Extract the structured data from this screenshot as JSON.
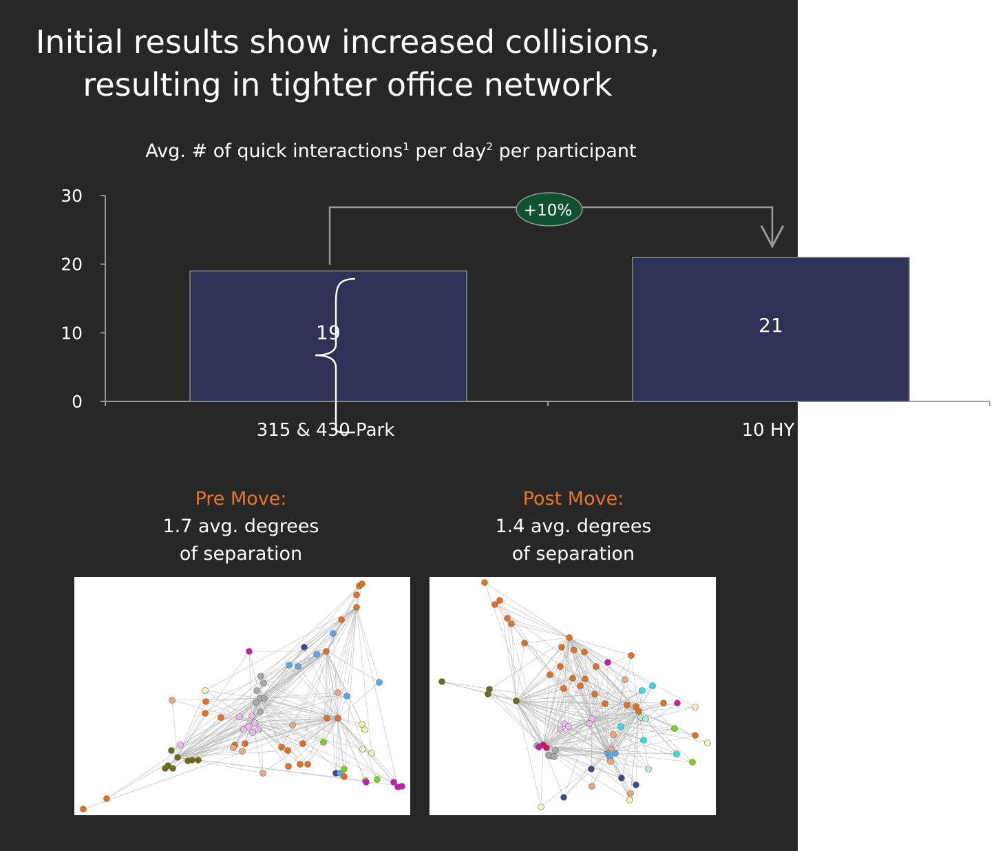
{
  "title": "Initial results show increased collisions,\nresulting in tighter office network",
  "chart_data": {
    "type": "bar",
    "title": "Avg. # of quick interactions",
    "title_sup1": "1",
    "title_mid": " per day",
    "title_sup2": "2",
    "title_end": " per participant",
    "categories": [
      "315 & 430 Park",
      "10 HY"
    ],
    "values": [
      19,
      21
    ],
    "value_labels": [
      "19",
      "21"
    ],
    "ylim": [
      0,
      30
    ],
    "yticks": [
      0,
      10,
      20,
      30
    ],
    "bar_color": "#2d3256",
    "annotation": {
      "label": "+10%",
      "color": "#0e5330"
    }
  },
  "captions": [
    {
      "heading": "Pre Move:",
      "line1": "1.7 avg. degrees",
      "line2": "of separation"
    },
    {
      "heading": "Post Move:",
      "line1": "1.4 avg. degrees",
      "line2": "of separation"
    }
  ],
  "colors": {
    "background": "#272727",
    "accent": "#e87722"
  },
  "networks": {
    "palette": {
      "orange": "#e2701f",
      "peach": "#f0a57a",
      "grey": "#a9a9a9",
      "pink": "#f0b8f0",
      "olive": "#6b6b1a",
      "lightblue": "#5aa9e6",
      "navy": "#3a4a8a",
      "magenta": "#c81ab4",
      "green": "#7ed321",
      "cream": "#f5f1b0",
      "cyan": "#2ee0e0",
      "mint": "#b8ecc8",
      "crimson": "#d0106a"
    }
  }
}
